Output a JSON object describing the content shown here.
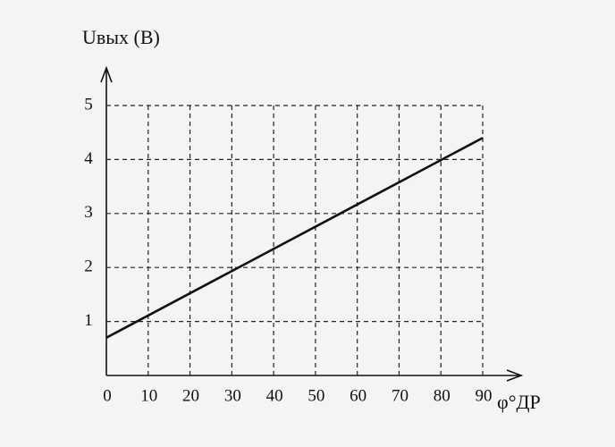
{
  "chart_data": {
    "type": "line",
    "y_label": "Uвых (В)",
    "x_label": "φ°ДР",
    "x": [
      0,
      90
    ],
    "series": [
      {
        "color": "#111111",
        "values": [
          0.7,
          4.4
        ]
      }
    ],
    "xlim": [
      0,
      90
    ],
    "xticks": [
      0,
      10,
      20,
      30,
      40,
      50,
      60,
      70,
      80,
      90
    ],
    "ylim": [
      0,
      5
    ],
    "yticks": [
      1,
      2,
      3,
      4,
      5
    ],
    "grid": true
  }
}
